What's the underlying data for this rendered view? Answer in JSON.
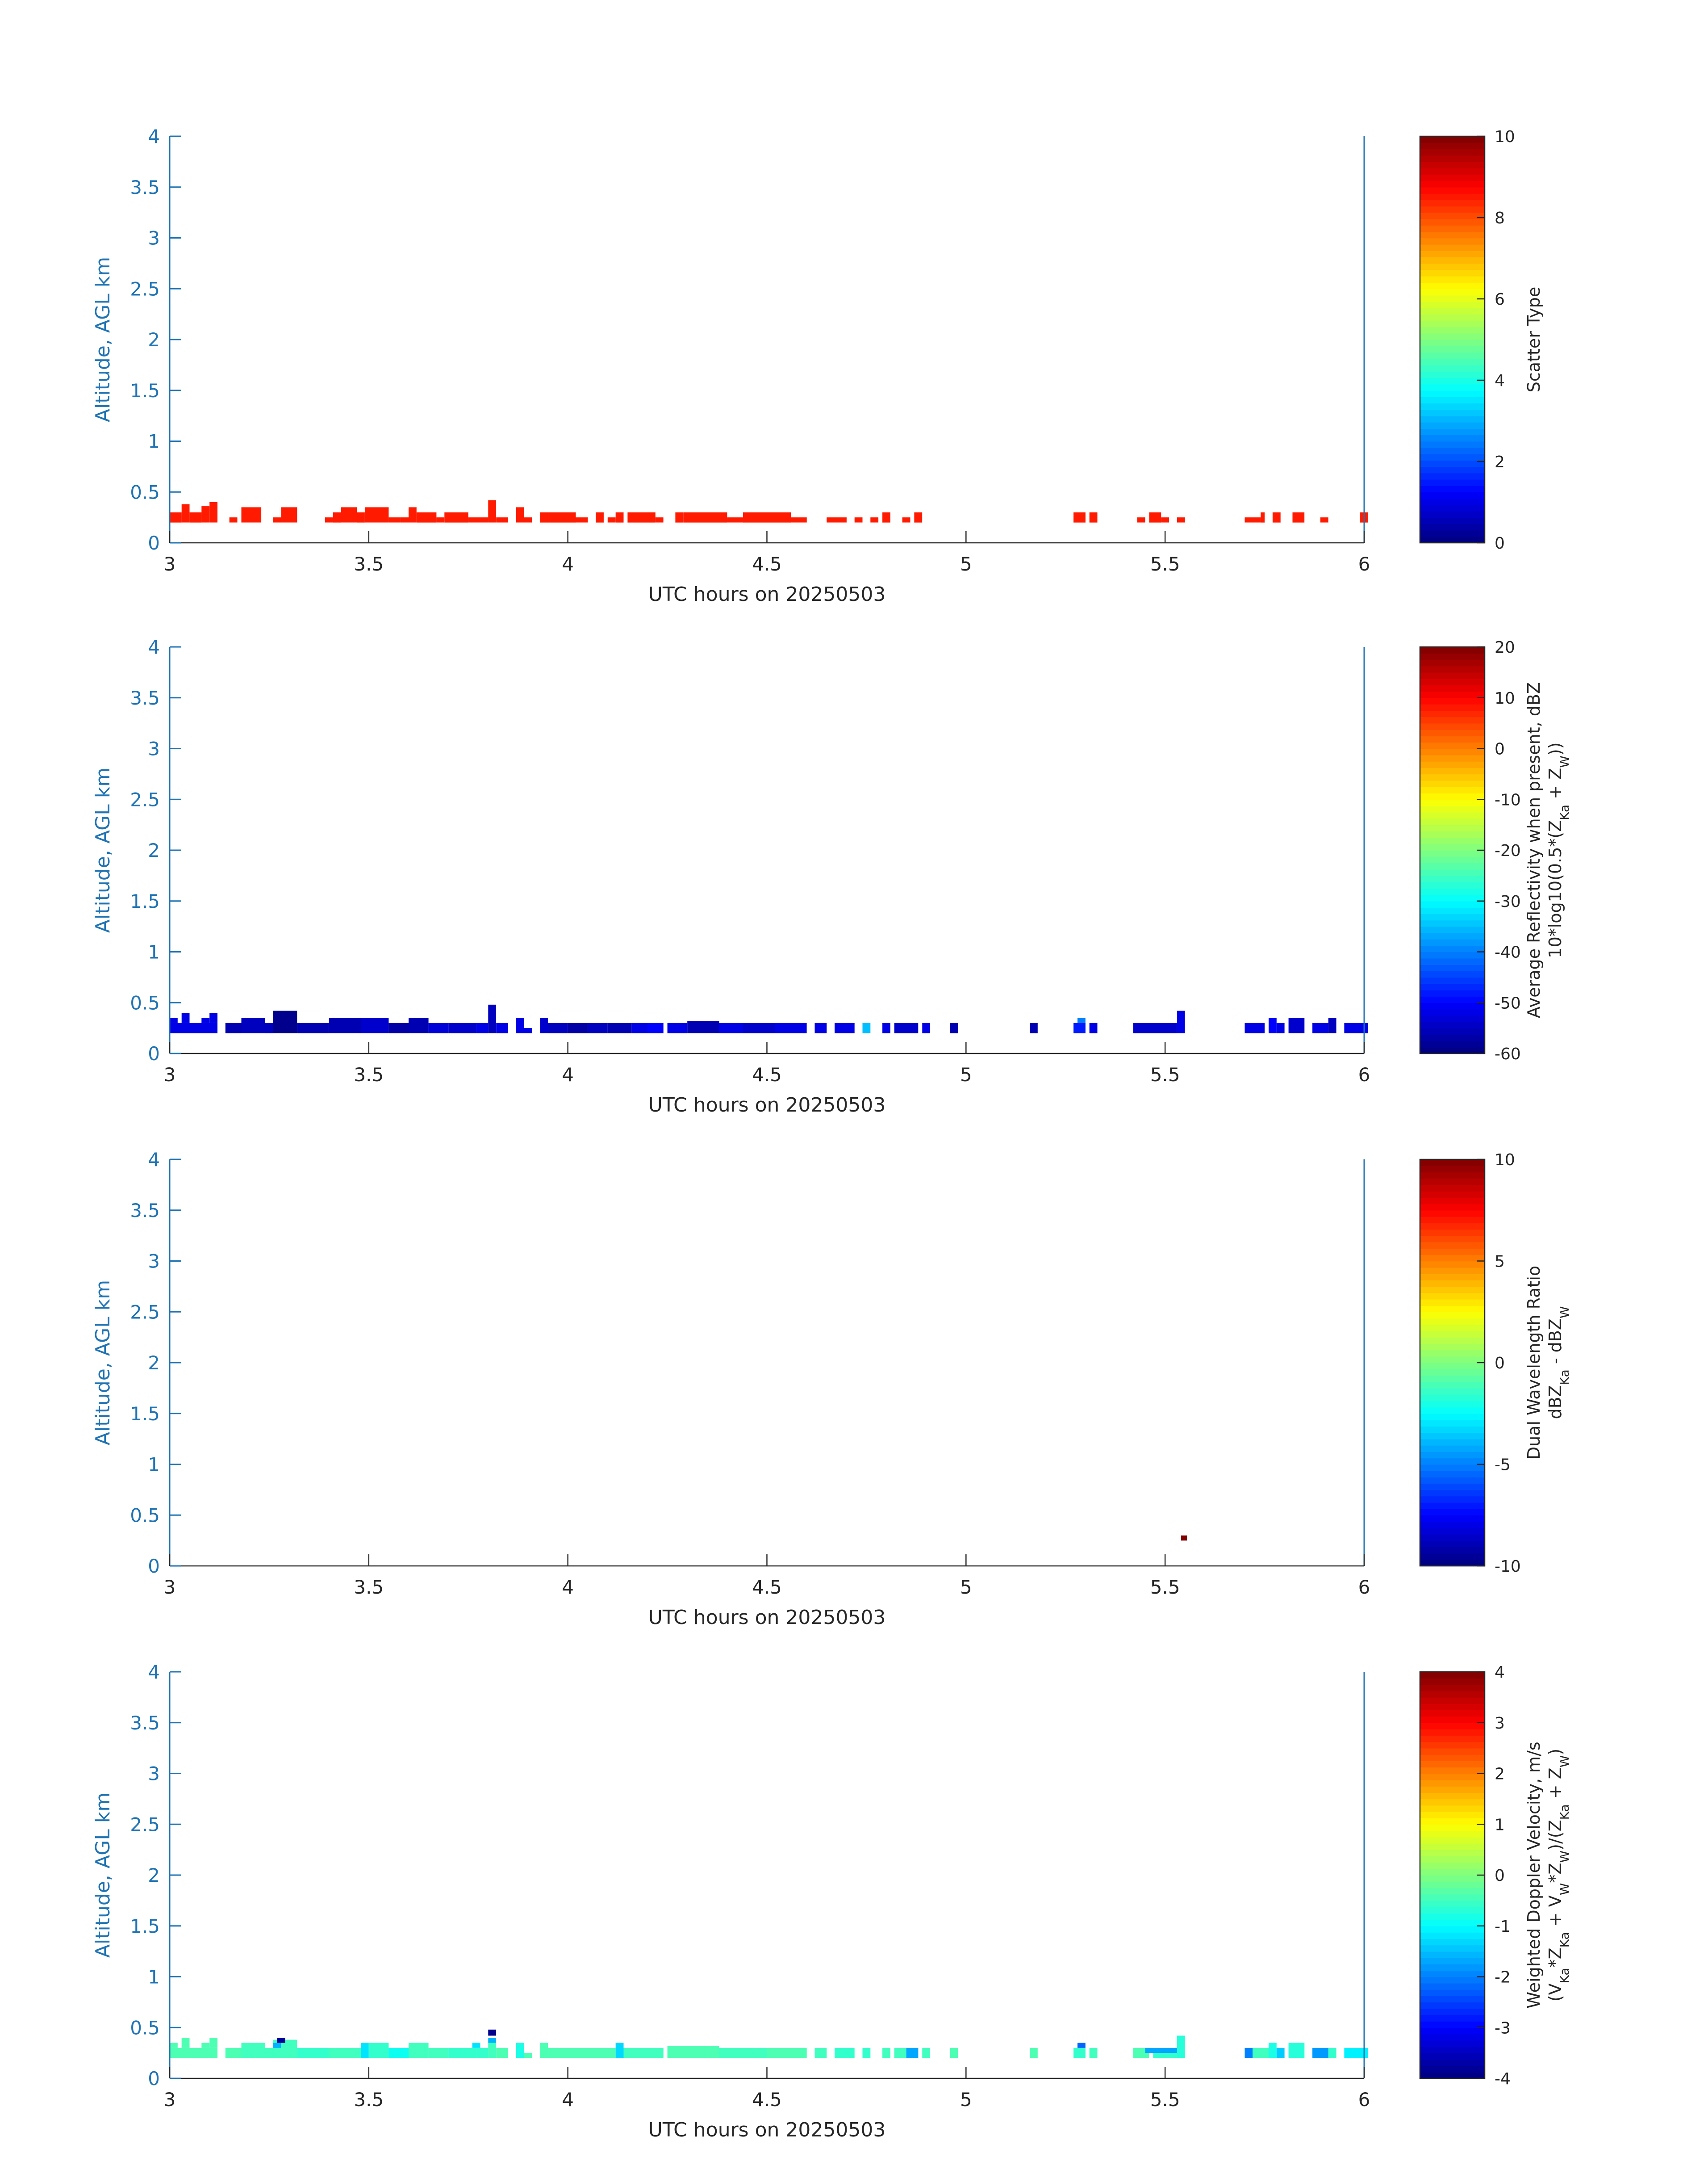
{
  "chart_data": [
    {
      "type": "heatmap",
      "xlabel": "UTC hours on 20250503",
      "ylabel": "Altitude, AGL km",
      "xlim": [
        3,
        6
      ],
      "ylim": [
        0,
        4
      ],
      "xticks": [
        "3",
        "3.5",
        "4",
        "4.5",
        "5",
        "5.5",
        "6"
      ],
      "yticks": [
        "0",
        "0.5",
        "1",
        "1.5",
        "2",
        "2.5",
        "3",
        "3.5",
        "4"
      ],
      "colorbar": {
        "label_lines": [
          "Scatter Type"
        ],
        "range": [
          0,
          10
        ],
        "ticks": [
          "0",
          "2",
          "4",
          "6",
          "8",
          "10"
        ],
        "colormap": "jet"
      },
      "cells": [
        [
          3.0,
          0.2,
          3.03,
          0.3,
          8.5
        ],
        [
          3.03,
          0.2,
          3.05,
          0.38,
          8.5
        ],
        [
          3.05,
          0.2,
          3.08,
          0.3,
          8.5
        ],
        [
          3.08,
          0.2,
          3.1,
          0.36,
          8.5
        ],
        [
          3.1,
          0.2,
          3.12,
          0.4,
          8.5
        ],
        [
          3.15,
          0.2,
          3.17,
          0.25,
          8.5
        ],
        [
          3.18,
          0.2,
          3.23,
          0.35,
          8.5
        ],
        [
          3.26,
          0.2,
          3.28,
          0.25,
          8.5
        ],
        [
          3.28,
          0.2,
          3.32,
          0.35,
          8.5
        ],
        [
          3.39,
          0.2,
          3.41,
          0.25,
          8.5
        ],
        [
          3.41,
          0.2,
          3.43,
          0.3,
          8.5
        ],
        [
          3.43,
          0.2,
          3.47,
          0.35,
          8.5
        ],
        [
          3.47,
          0.2,
          3.49,
          0.3,
          8.5
        ],
        [
          3.49,
          0.2,
          3.55,
          0.35,
          8.5
        ],
        [
          3.55,
          0.2,
          3.58,
          0.25,
          8.5
        ],
        [
          3.58,
          0.2,
          3.6,
          0.25,
          8.5
        ],
        [
          3.6,
          0.2,
          3.62,
          0.35,
          8.5
        ],
        [
          3.62,
          0.2,
          3.67,
          0.3,
          8.5
        ],
        [
          3.67,
          0.2,
          3.69,
          0.25,
          8.5
        ],
        [
          3.69,
          0.2,
          3.75,
          0.3,
          8.5
        ],
        [
          3.75,
          0.2,
          3.8,
          0.25,
          8.5
        ],
        [
          3.8,
          0.2,
          3.82,
          0.42,
          8.5
        ],
        [
          3.82,
          0.2,
          3.85,
          0.25,
          8.5
        ],
        [
          3.87,
          0.2,
          3.89,
          0.35,
          8.5
        ],
        [
          3.89,
          0.2,
          3.91,
          0.25,
          8.5
        ],
        [
          3.93,
          0.2,
          3.95,
          0.3,
          8.5
        ],
        [
          3.95,
          0.2,
          4.02,
          0.3,
          8.5
        ],
        [
          4.02,
          0.2,
          4.05,
          0.25,
          8.5
        ],
        [
          4.07,
          0.2,
          4.09,
          0.3,
          8.5
        ],
        [
          4.1,
          0.2,
          4.12,
          0.25,
          8.5
        ],
        [
          4.12,
          0.2,
          4.14,
          0.3,
          8.5
        ],
        [
          4.15,
          0.2,
          4.22,
          0.3,
          8.5
        ],
        [
          4.22,
          0.2,
          4.24,
          0.25,
          8.5
        ],
        [
          4.27,
          0.2,
          4.29,
          0.3,
          8.5
        ],
        [
          4.29,
          0.2,
          4.4,
          0.3,
          8.5
        ],
        [
          4.4,
          0.2,
          4.44,
          0.25,
          8.5
        ],
        [
          4.44,
          0.2,
          4.56,
          0.3,
          8.5
        ],
        [
          4.56,
          0.2,
          4.6,
          0.25,
          8.5
        ],
        [
          4.65,
          0.2,
          4.7,
          0.25,
          8.5
        ],
        [
          4.72,
          0.2,
          4.74,
          0.25,
          8.5
        ],
        [
          4.76,
          0.2,
          4.78,
          0.25,
          8.5
        ],
        [
          4.79,
          0.2,
          4.81,
          0.3,
          8.5
        ],
        [
          4.84,
          0.2,
          4.86,
          0.25,
          8.5
        ],
        [
          4.87,
          0.2,
          4.89,
          0.3,
          8.5
        ],
        [
          5.27,
          0.2,
          5.3,
          0.3,
          8.5
        ],
        [
          5.31,
          0.2,
          5.33,
          0.3,
          8.5
        ],
        [
          5.43,
          0.2,
          5.45,
          0.25,
          8.5
        ],
        [
          5.46,
          0.2,
          5.49,
          0.3,
          8.5
        ],
        [
          5.49,
          0.2,
          5.51,
          0.25,
          8.5
        ],
        [
          5.53,
          0.2,
          5.55,
          0.25,
          8.5
        ],
        [
          5.7,
          0.2,
          5.74,
          0.25,
          8.5
        ],
        [
          5.74,
          0.2,
          5.75,
          0.3,
          8.5
        ],
        [
          5.77,
          0.2,
          5.79,
          0.3,
          8.5
        ],
        [
          5.82,
          0.2,
          5.85,
          0.3,
          8.5
        ],
        [
          5.89,
          0.2,
          5.91,
          0.25,
          8.5
        ],
        [
          5.99,
          0.2,
          6.01,
          0.3,
          8.5
        ]
      ]
    },
    {
      "type": "heatmap",
      "xlabel": "UTC hours on 20250503",
      "ylabel": "Altitude, AGL km",
      "xlim": [
        3,
        6
      ],
      "ylim": [
        0,
        4
      ],
      "xticks": [
        "3",
        "3.5",
        "4",
        "4.5",
        "5",
        "5.5",
        "6"
      ],
      "yticks": [
        "0",
        "0.5",
        "1",
        "1.5",
        "2",
        "2.5",
        "3",
        "3.5",
        "4"
      ],
      "colorbar": {
        "label_lines": [
          "Average Reflectivity when present, dBZ",
          "10*log10(0.5*(Z_Ka + Z_W))"
        ],
        "range": [
          -60,
          20
        ],
        "ticks": [
          "-60",
          "-50",
          "-40",
          "-30",
          "-20",
          "-10",
          "0",
          "10",
          "20"
        ],
        "colormap": "jet"
      },
      "cells": [
        [
          3.0,
          0.2,
          3.12,
          0.3,
          -52
        ],
        [
          3.0,
          0.3,
          3.02,
          0.35,
          -52
        ],
        [
          3.03,
          0.3,
          3.05,
          0.4,
          -52
        ],
        [
          3.08,
          0.3,
          3.1,
          0.35,
          -52
        ],
        [
          3.1,
          0.3,
          3.12,
          0.4,
          -52
        ],
        [
          3.14,
          0.2,
          3.18,
          0.3,
          -56
        ],
        [
          3.18,
          0.2,
          3.24,
          0.35,
          -55
        ],
        [
          3.24,
          0.2,
          3.26,
          0.3,
          -55
        ],
        [
          3.26,
          0.2,
          3.32,
          0.42,
          -59
        ],
        [
          3.32,
          0.2,
          3.4,
          0.3,
          -56
        ],
        [
          3.4,
          0.2,
          3.48,
          0.35,
          -56
        ],
        [
          3.48,
          0.2,
          3.55,
          0.35,
          -54
        ],
        [
          3.55,
          0.2,
          3.6,
          0.3,
          -57
        ],
        [
          3.6,
          0.2,
          3.65,
          0.35,
          -56
        ],
        [
          3.65,
          0.2,
          3.7,
          0.3,
          -53
        ],
        [
          3.7,
          0.2,
          3.77,
          0.3,
          -54
        ],
        [
          3.77,
          0.2,
          3.8,
          0.3,
          -52
        ],
        [
          3.8,
          0.2,
          3.82,
          0.48,
          -55
        ],
        [
          3.82,
          0.2,
          3.85,
          0.3,
          -52
        ],
        [
          3.87,
          0.2,
          3.89,
          0.35,
          -52
        ],
        [
          3.89,
          0.2,
          3.91,
          0.25,
          -52
        ],
        [
          3.93,
          0.2,
          3.95,
          0.35,
          -54
        ],
        [
          3.95,
          0.2,
          4.0,
          0.3,
          -55
        ],
        [
          4.0,
          0.2,
          4.05,
          0.3,
          -57
        ],
        [
          4.05,
          0.2,
          4.1,
          0.3,
          -55
        ],
        [
          4.1,
          0.2,
          4.16,
          0.3,
          -56
        ],
        [
          4.16,
          0.2,
          4.2,
          0.3,
          -52
        ],
        [
          4.2,
          0.2,
          4.24,
          0.3,
          -50
        ],
        [
          4.25,
          0.2,
          4.3,
          0.3,
          -52
        ],
        [
          4.3,
          0.2,
          4.38,
          0.32,
          -56
        ],
        [
          4.38,
          0.2,
          4.44,
          0.3,
          -52
        ],
        [
          4.44,
          0.2,
          4.52,
          0.3,
          -54
        ],
        [
          4.52,
          0.2,
          4.6,
          0.3,
          -52
        ],
        [
          4.62,
          0.2,
          4.65,
          0.3,
          -52
        ],
        [
          4.67,
          0.2,
          4.72,
          0.3,
          -52
        ],
        [
          4.74,
          0.2,
          4.76,
          0.3,
          -35
        ],
        [
          4.79,
          0.2,
          4.81,
          0.3,
          -52
        ],
        [
          4.82,
          0.2,
          4.88,
          0.3,
          -54
        ],
        [
          4.89,
          0.2,
          4.91,
          0.3,
          -52
        ],
        [
          4.96,
          0.2,
          4.98,
          0.3,
          -56
        ],
        [
          5.16,
          0.2,
          5.18,
          0.3,
          -56
        ],
        [
          5.27,
          0.2,
          5.3,
          0.3,
          -48
        ],
        [
          5.28,
          0.3,
          5.3,
          0.35,
          -40
        ],
        [
          5.31,
          0.2,
          5.33,
          0.3,
          -52
        ],
        [
          5.42,
          0.2,
          5.53,
          0.3,
          -54
        ],
        [
          5.53,
          0.2,
          5.55,
          0.42,
          -52
        ],
        [
          5.7,
          0.2,
          5.75,
          0.3,
          -52
        ],
        [
          5.76,
          0.2,
          5.78,
          0.35,
          -50
        ],
        [
          5.78,
          0.2,
          5.8,
          0.3,
          -52
        ],
        [
          5.81,
          0.2,
          5.85,
          0.35,
          -54
        ],
        [
          5.87,
          0.2,
          5.91,
          0.3,
          -52
        ],
        [
          5.91,
          0.2,
          5.93,
          0.35,
          -55
        ],
        [
          5.95,
          0.2,
          6.01,
          0.3,
          -52
        ]
      ]
    },
    {
      "type": "heatmap",
      "xlabel": "UTC hours on 20250503",
      "ylabel": "Altitude, AGL km",
      "xlim": [
        3,
        6
      ],
      "ylim": [
        0,
        4
      ],
      "xticks": [
        "3",
        "3.5",
        "4",
        "4.5",
        "5",
        "5.5",
        "6"
      ],
      "yticks": [
        "0",
        "0.5",
        "1",
        "1.5",
        "2",
        "2.5",
        "3",
        "3.5",
        "4"
      ],
      "colorbar": {
        "label_lines": [
          "Dual Wavelength Ratio",
          "dBZ_Ka - dBZ_W"
        ],
        "range": [
          -10,
          10
        ],
        "ticks": [
          "-10",
          "-5",
          "0",
          "5",
          "10"
        ],
        "colormap": "jet"
      },
      "cells": [
        [
          5.54,
          0.25,
          5.555,
          0.3,
          10
        ]
      ]
    },
    {
      "type": "heatmap",
      "xlabel": "UTC hours on 20250503",
      "ylabel": "Altitude, AGL km",
      "xlim": [
        3,
        6
      ],
      "ylim": [
        0,
        4
      ],
      "xticks": [
        "3",
        "3.5",
        "4",
        "4.5",
        "5",
        "5.5",
        "6"
      ],
      "yticks": [
        "0",
        "0.5",
        "1",
        "1.5",
        "2",
        "2.5",
        "3",
        "3.5",
        "4"
      ],
      "colorbar": {
        "label_lines": [
          "Weighted Doppler Velocity, m/s",
          "(V_Ka*Z_Ka + V_W*Z_W)/(Z_Ka + Z_W)"
        ],
        "range": [
          -4,
          4
        ],
        "ticks": [
          "-4",
          "-3",
          "-2",
          "-1",
          "0",
          "1",
          "2",
          "3",
          "4"
        ],
        "colormap": "jet"
      },
      "cells": [
        [
          3.0,
          0.2,
          3.12,
          0.3,
          -0.4
        ],
        [
          3.0,
          0.3,
          3.02,
          0.35,
          -0.4
        ],
        [
          3.03,
          0.3,
          3.05,
          0.4,
          -0.4
        ],
        [
          3.08,
          0.3,
          3.1,
          0.35,
          -0.4
        ],
        [
          3.1,
          0.3,
          3.12,
          0.4,
          -0.4
        ],
        [
          3.14,
          0.2,
          3.18,
          0.3,
          -0.4
        ],
        [
          3.18,
          0.2,
          3.24,
          0.35,
          -0.5
        ],
        [
          3.24,
          0.2,
          3.26,
          0.3,
          -0.5
        ],
        [
          3.26,
          0.2,
          3.32,
          0.38,
          -0.5
        ],
        [
          3.26,
          0.3,
          3.28,
          0.35,
          -1.6
        ],
        [
          3.27,
          0.35,
          3.29,
          0.4,
          -3.8
        ],
        [
          3.32,
          0.2,
          3.4,
          0.3,
          -0.6
        ],
        [
          3.4,
          0.2,
          3.48,
          0.3,
          -0.5
        ],
        [
          3.48,
          0.2,
          3.5,
          0.35,
          -1.2
        ],
        [
          3.5,
          0.2,
          3.55,
          0.35,
          -0.6
        ],
        [
          3.55,
          0.2,
          3.6,
          0.3,
          -0.9
        ],
        [
          3.6,
          0.2,
          3.65,
          0.35,
          -0.5
        ],
        [
          3.65,
          0.2,
          3.7,
          0.3,
          -0.5
        ],
        [
          3.7,
          0.2,
          3.77,
          0.3,
          -0.6
        ],
        [
          3.76,
          0.3,
          3.78,
          0.35,
          -1.2
        ],
        [
          3.77,
          0.2,
          3.8,
          0.3,
          -0.6
        ],
        [
          3.8,
          0.2,
          3.82,
          0.35,
          -0.5
        ],
        [
          3.8,
          0.35,
          3.82,
          0.4,
          -1.6
        ],
        [
          3.8,
          0.42,
          3.82,
          0.48,
          -3.9
        ],
        [
          3.82,
          0.2,
          3.85,
          0.3,
          -0.4
        ],
        [
          3.87,
          0.2,
          3.89,
          0.35,
          -0.8
        ],
        [
          3.89,
          0.2,
          3.91,
          0.25,
          -0.4
        ],
        [
          3.93,
          0.2,
          3.95,
          0.35,
          -0.4
        ],
        [
          3.95,
          0.2,
          4.12,
          0.3,
          -0.4
        ],
        [
          4.12,
          0.2,
          4.14,
          0.35,
          -1.3
        ],
        [
          4.14,
          0.2,
          4.24,
          0.3,
          -0.5
        ],
        [
          4.25,
          0.2,
          4.38,
          0.32,
          -0.4
        ],
        [
          4.38,
          0.2,
          4.5,
          0.3,
          -0.5
        ],
        [
          4.5,
          0.2,
          4.6,
          0.3,
          -0.4
        ],
        [
          4.62,
          0.2,
          4.65,
          0.3,
          -0.5
        ],
        [
          4.67,
          0.2,
          4.72,
          0.3,
          -0.6
        ],
        [
          4.74,
          0.2,
          4.76,
          0.3,
          -0.6
        ],
        [
          4.79,
          0.2,
          4.81,
          0.3,
          -0.5
        ],
        [
          4.82,
          0.2,
          4.85,
          0.3,
          -0.5
        ],
        [
          4.85,
          0.2,
          4.88,
          0.3,
          -1.7
        ],
        [
          4.89,
          0.2,
          4.91,
          0.3,
          -0.5
        ],
        [
          4.96,
          0.2,
          4.98,
          0.3,
          -0.4
        ],
        [
          5.16,
          0.2,
          5.18,
          0.3,
          -0.4
        ],
        [
          5.27,
          0.2,
          5.3,
          0.3,
          -0.6
        ],
        [
          5.28,
          0.3,
          5.3,
          0.35,
          -2.2
        ],
        [
          5.31,
          0.2,
          5.33,
          0.3,
          -0.5
        ],
        [
          5.42,
          0.2,
          5.46,
          0.3,
          -0.4
        ],
        [
          5.45,
          0.25,
          5.53,
          0.3,
          -1.7
        ],
        [
          5.47,
          0.2,
          5.53,
          0.25,
          -0.6
        ],
        [
          5.53,
          0.2,
          5.55,
          0.42,
          -0.7
        ],
        [
          5.7,
          0.2,
          5.72,
          0.3,
          -2.0
        ],
        [
          5.72,
          0.2,
          5.76,
          0.3,
          -0.5
        ],
        [
          5.76,
          0.2,
          5.78,
          0.35,
          -0.8
        ],
        [
          5.78,
          0.2,
          5.8,
          0.3,
          -1.4
        ],
        [
          5.81,
          0.2,
          5.85,
          0.35,
          -0.7
        ],
        [
          5.87,
          0.2,
          5.91,
          0.3,
          -1.8
        ],
        [
          5.91,
          0.2,
          5.93,
          0.3,
          -0.6
        ],
        [
          5.95,
          0.2,
          6.01,
          0.3,
          -1.1
        ]
      ]
    }
  ]
}
